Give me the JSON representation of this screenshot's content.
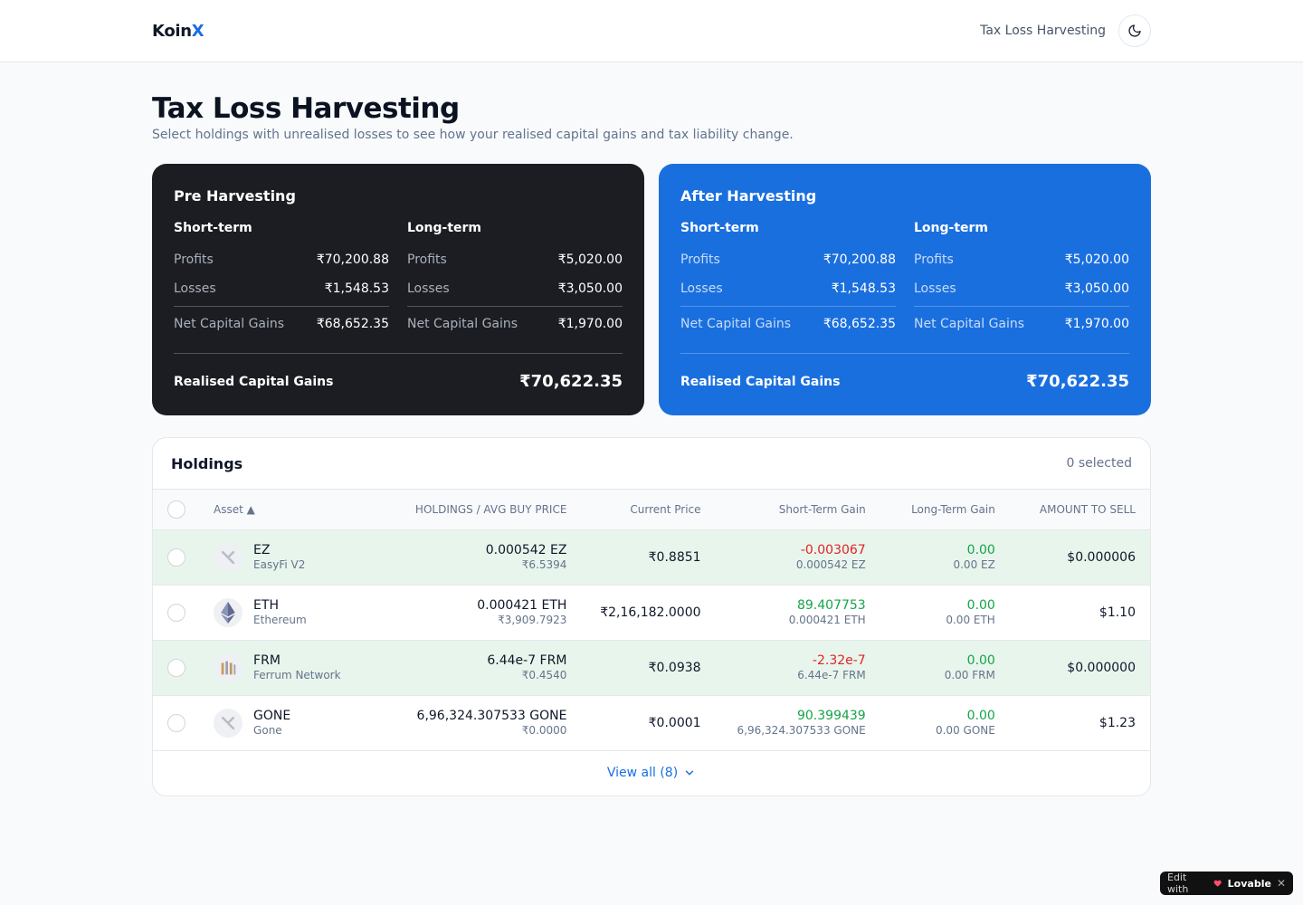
{
  "header": {
    "brand_main": "Koin",
    "brand_accent": "X",
    "nav_link": "Tax Loss Harvesting",
    "theme_icon": "moon-icon"
  },
  "page": {
    "title": "Tax Loss Harvesting",
    "subtitle": "Select holdings with unrealised losses to see how your realised capital gains and tax liability change."
  },
  "cards": {
    "pre": {
      "title": "Pre Harvesting",
      "short_term": {
        "heading": "Short-term",
        "profits_label": "Profits",
        "profits": "₹70,200.88",
        "losses_label": "Losses",
        "losses": "₹1,548.53",
        "net_label": "Net Capital Gains",
        "net": "₹68,652.35"
      },
      "long_term": {
        "heading": "Long-term",
        "profits_label": "Profits",
        "profits": "₹5,020.00",
        "losses_label": "Losses",
        "losses": "₹3,050.00",
        "net_label": "Net Capital Gains",
        "net": "₹1,970.00"
      },
      "realised_label": "Realised Capital Gains",
      "realised_value": "₹70,622.35",
      "color": "#1b1d22"
    },
    "post": {
      "title": "After Harvesting",
      "short_term": {
        "heading": "Short-term",
        "profits_label": "Profits",
        "profits": "₹70,200.88",
        "losses_label": "Losses",
        "losses": "₹1,548.53",
        "net_label": "Net Capital Gains",
        "net": "₹68,652.35"
      },
      "long_term": {
        "heading": "Long-term",
        "profits_label": "Profits",
        "profits": "₹5,020.00",
        "losses_label": "Losses",
        "losses": "₹3,050.00",
        "net_label": "Net Capital Gains",
        "net": "₹1,970.00"
      },
      "realised_label": "Realised Capital Gains",
      "realised_value": "₹70,622.35",
      "color": "#1a6fdf"
    }
  },
  "holdings": {
    "title": "Holdings",
    "selected_text": "0 selected",
    "columns": {
      "asset": "Asset ▲",
      "holdings": "HOLDINGS / AVG BUY PRICE",
      "current_price": "Current Price",
      "short_term": "Short-Term Gain",
      "long_term": "Long-Term Gain",
      "amount": "AMOUNT TO SELL"
    },
    "rows": [
      {
        "symbol": "EZ",
        "name": "EasyFi V2",
        "icon": "easyfi-logo-icon",
        "holding": "0.000542 EZ",
        "avg_price": "₹6.5394",
        "current_price": "₹0.8851",
        "st_gain": "-0.003067",
        "st_sub": "0.000542 EZ",
        "st_sign": "neg",
        "lt_gain": "0.00",
        "lt_sub": "0.00 EZ",
        "amount": "$0.000006",
        "highlight": true
      },
      {
        "symbol": "ETH",
        "name": "Ethereum",
        "icon": "ethereum-logo-icon",
        "holding": "0.000421 ETH",
        "avg_price": "₹3,909.7923",
        "current_price": "₹2,16,182.0000",
        "st_gain": "89.407753",
        "st_sub": "0.000421 ETH",
        "st_sign": "pos",
        "lt_gain": "0.00",
        "lt_sub": "0.00 ETH",
        "amount": "$1.10",
        "highlight": false
      },
      {
        "symbol": "FRM",
        "name": "Ferrum Network",
        "icon": "ferrum-logo-icon",
        "holding": "6.44e-7 FRM",
        "avg_price": "₹0.4540",
        "current_price": "₹0.0938",
        "st_gain": "-2.32e-7",
        "st_sub": "6.44e-7 FRM",
        "st_sign": "neg",
        "lt_gain": "0.00",
        "lt_sub": "0.00 FRM",
        "amount": "$0.000000",
        "highlight": true
      },
      {
        "symbol": "GONE",
        "name": "Gone",
        "icon": "gone-logo-icon",
        "holding": "6,96,324.307533 GONE",
        "avg_price": "₹0.0000",
        "current_price": "₹0.0001",
        "st_gain": "90.399439",
        "st_sub": "6,96,324.307533 GONE",
        "st_sign": "pos",
        "lt_gain": "0.00",
        "lt_sub": "0.00 GONE",
        "amount": "$1.23",
        "highlight": false
      }
    ],
    "view_all": "View all (8)"
  },
  "badge": {
    "edit_with": "Edit with",
    "brand": "Lovable",
    "close": "✕"
  }
}
